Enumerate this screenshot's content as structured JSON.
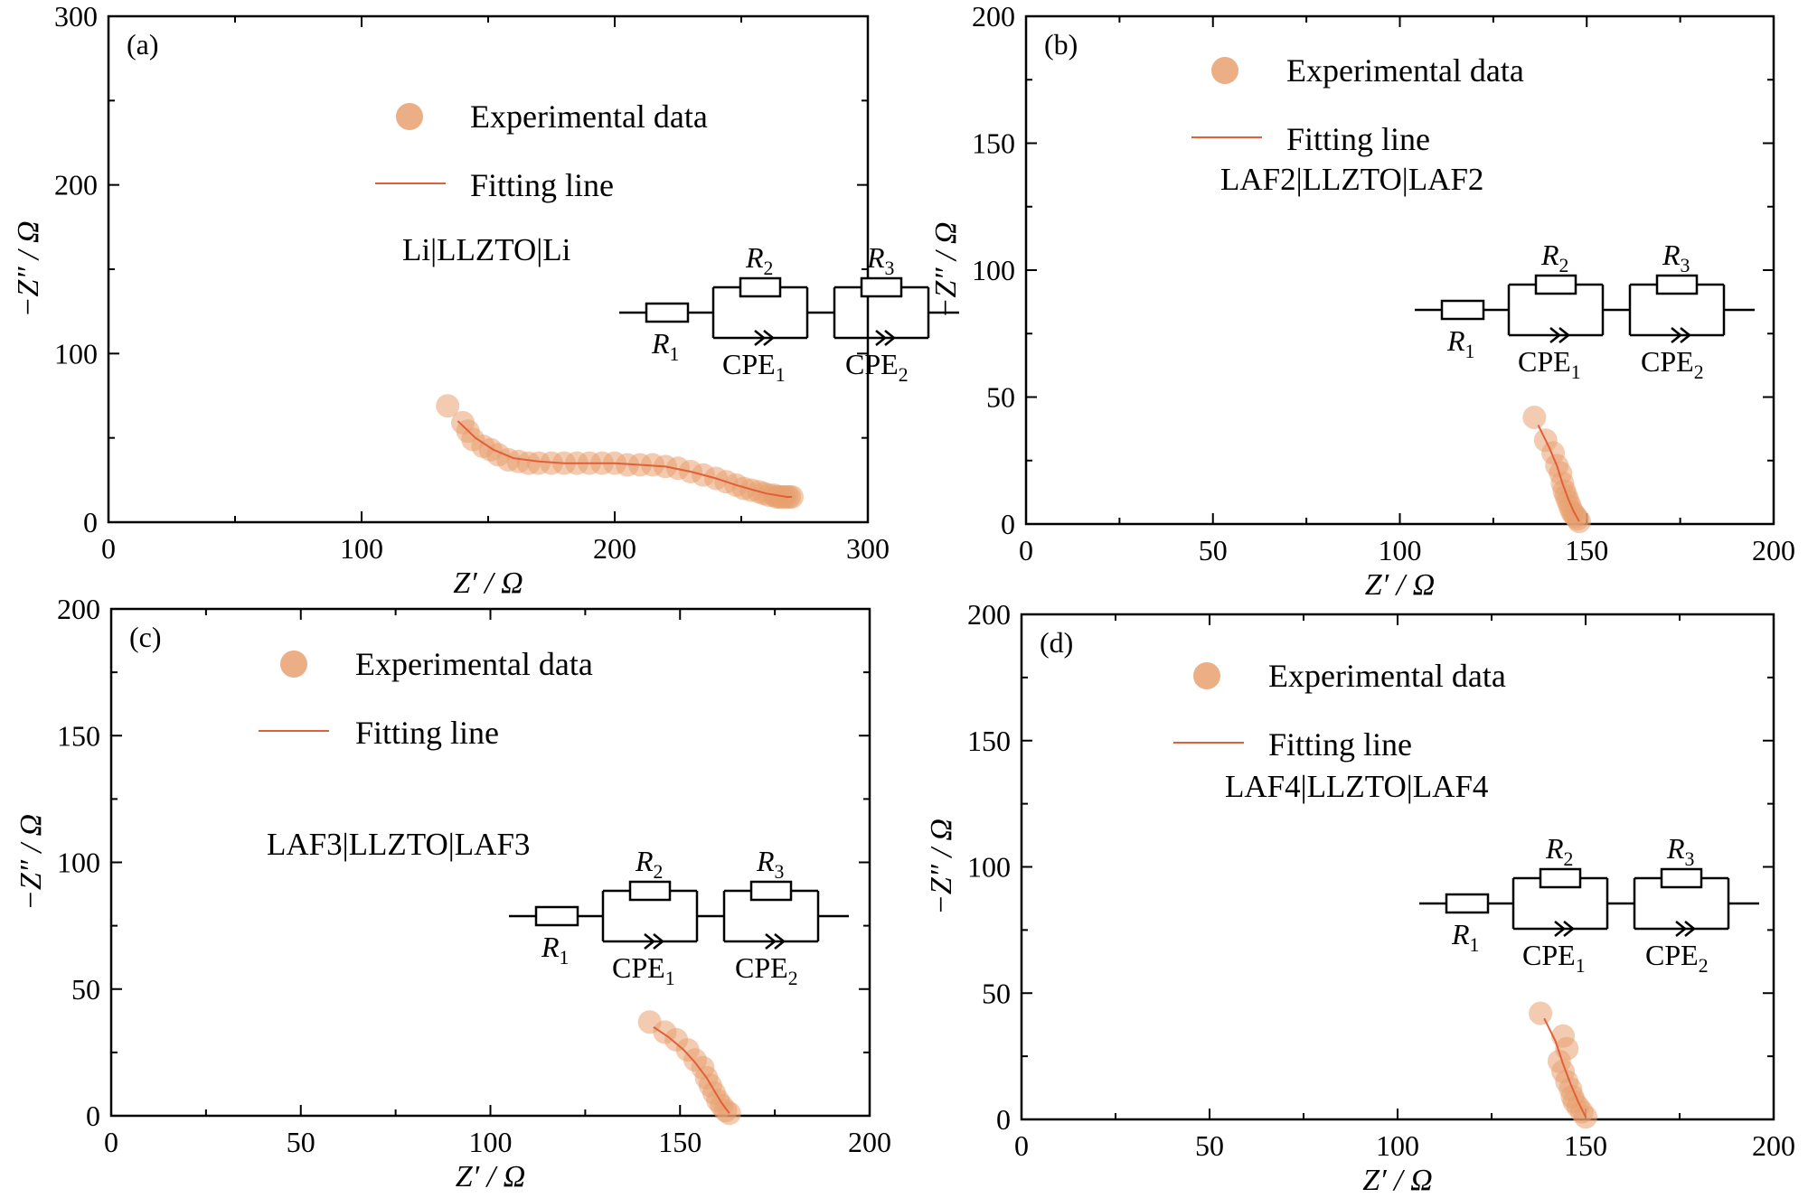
{
  "chart_data": [
    {
      "type": "scatter",
      "panel_label": "(a)",
      "sample": "Li|LLZTO|Li",
      "xlabel": "Z′ / Ω",
      "ylabel": "−Z″ / Ω",
      "xlim": [
        0,
        300
      ],
      "ylim": [
        0,
        300
      ],
      "xticks": [
        0,
        100,
        200,
        300
      ],
      "yticks": [
        0,
        100,
        200,
        300
      ],
      "series": [
        {
          "name": "Experimental data",
          "kind": "points",
          "x": [
            134,
            140,
            142,
            144,
            148,
            151,
            154,
            158,
            162,
            166,
            170,
            175,
            180,
            185,
            190,
            195,
            200,
            205,
            210,
            215,
            220,
            225,
            230,
            235,
            240,
            244,
            248,
            251,
            254,
            257,
            259,
            261,
            263,
            264,
            265,
            266,
            267,
            268,
            269,
            270
          ],
          "y": [
            69,
            59,
            54,
            49,
            45,
            43,
            40,
            37,
            36,
            35,
            35,
            35,
            35,
            35,
            35,
            35,
            35,
            34,
            34,
            34,
            33,
            32,
            30,
            28,
            26,
            24,
            22,
            20,
            19,
            18,
            17,
            16,
            16,
            15,
            15,
            15,
            15,
            15,
            15,
            15
          ]
        },
        {
          "name": "Fitting line",
          "kind": "line",
          "x": [
            138,
            145,
            152,
            160,
            170,
            180,
            190,
            200,
            210,
            220,
            230,
            240,
            248,
            255,
            260,
            264,
            268,
            270
          ],
          "y": [
            60,
            50,
            43,
            38,
            36,
            35,
            35,
            35,
            34,
            33,
            30,
            26,
            22,
            19,
            17,
            16,
            15,
            15
          ]
        }
      ]
    },
    {
      "type": "scatter",
      "panel_label": "(b)",
      "sample": "LAF2|LLZTO|LAF2",
      "xlabel": "Z′ / Ω",
      "ylabel": "−Z″ / Ω",
      "xlim": [
        0,
        200
      ],
      "ylim": [
        0,
        200
      ],
      "xticks": [
        0,
        50,
        100,
        150,
        200
      ],
      "yticks": [
        0,
        50,
        100,
        150,
        200
      ],
      "series": [
        {
          "name": "Experimental data",
          "kind": "points",
          "x": [
            136,
            139,
            141,
            142,
            143,
            143.5,
            144,
            144.5,
            145,
            145.5,
            146,
            146.5,
            147,
            147.5,
            148
          ],
          "y": [
            42,
            33,
            28,
            23,
            20,
            16,
            13,
            11,
            9,
            7,
            5,
            4,
            3,
            2,
            1
          ]
        },
        {
          "name": "Fitting line",
          "kind": "line",
          "x": [
            137,
            140,
            142,
            143.5,
            145,
            146.5,
            148
          ],
          "y": [
            39,
            30,
            23,
            16,
            10,
            5,
            1
          ]
        }
      ]
    },
    {
      "type": "scatter",
      "panel_label": "(c)",
      "sample": "LAF3|LLZTO|LAF3",
      "xlabel": "Z′ / Ω",
      "ylabel": "−Z″ / Ω",
      "xlim": [
        0,
        200
      ],
      "ylim": [
        0,
        200
      ],
      "xticks": [
        0,
        50,
        100,
        150,
        200
      ],
      "yticks": [
        0,
        50,
        100,
        150,
        200
      ],
      "series": [
        {
          "name": "Experimental data",
          "kind": "points",
          "x": [
            142,
            146,
            149,
            152,
            154,
            156,
            157,
            158,
            159,
            160,
            161,
            162,
            163
          ],
          "y": [
            37,
            33,
            30,
            26,
            22,
            19,
            15,
            12,
            9,
            6,
            4,
            2,
            1
          ]
        },
        {
          "name": "Fitting line",
          "kind": "line",
          "x": [
            143,
            147,
            151,
            154,
            157,
            159,
            161,
            163
          ],
          "y": [
            35,
            31,
            26,
            21,
            15,
            10,
            5,
            1
          ]
        }
      ]
    },
    {
      "type": "scatter",
      "panel_label": "(d)",
      "sample": "LAF4|LLZTO|LAF4",
      "xlabel": "Z′ / Ω",
      "ylabel": "−Z″ / Ω",
      "xlim": [
        0,
        200
      ],
      "ylim": [
        0,
        200
      ],
      "xticks": [
        0,
        50,
        100,
        150,
        200
      ],
      "yticks": [
        0,
        50,
        100,
        150,
        200
      ],
      "series": [
        {
          "name": "Experimental data",
          "kind": "points",
          "x": [
            138,
            144,
            145,
            143,
            144,
            145,
            146,
            146.5,
            147,
            148,
            149,
            150
          ],
          "y": [
            42,
            33,
            28,
            23,
            19,
            15,
            12,
            9,
            7,
            5,
            3,
            1
          ]
        },
        {
          "name": "Fitting line",
          "kind": "line",
          "x": [
            139,
            142,
            144,
            146,
            148,
            150
          ],
          "y": [
            40,
            31,
            22,
            14,
            7,
            1
          ]
        }
      ]
    }
  ],
  "legend": {
    "experimental": "Experimental data",
    "fitting": "Fitting line"
  },
  "circuit": {
    "R1": "R",
    "R1_sub": "1",
    "R2": "R",
    "R2_sub": "2",
    "R3": "R",
    "R3_sub": "3",
    "CPE1": "CPE",
    "CPE1_sub": "1",
    "CPE2": "CPE",
    "CPE2_sub": "2"
  },
  "colors": {
    "marker": "#E8A070",
    "line": "#E0603A",
    "axis": "#000000"
  }
}
